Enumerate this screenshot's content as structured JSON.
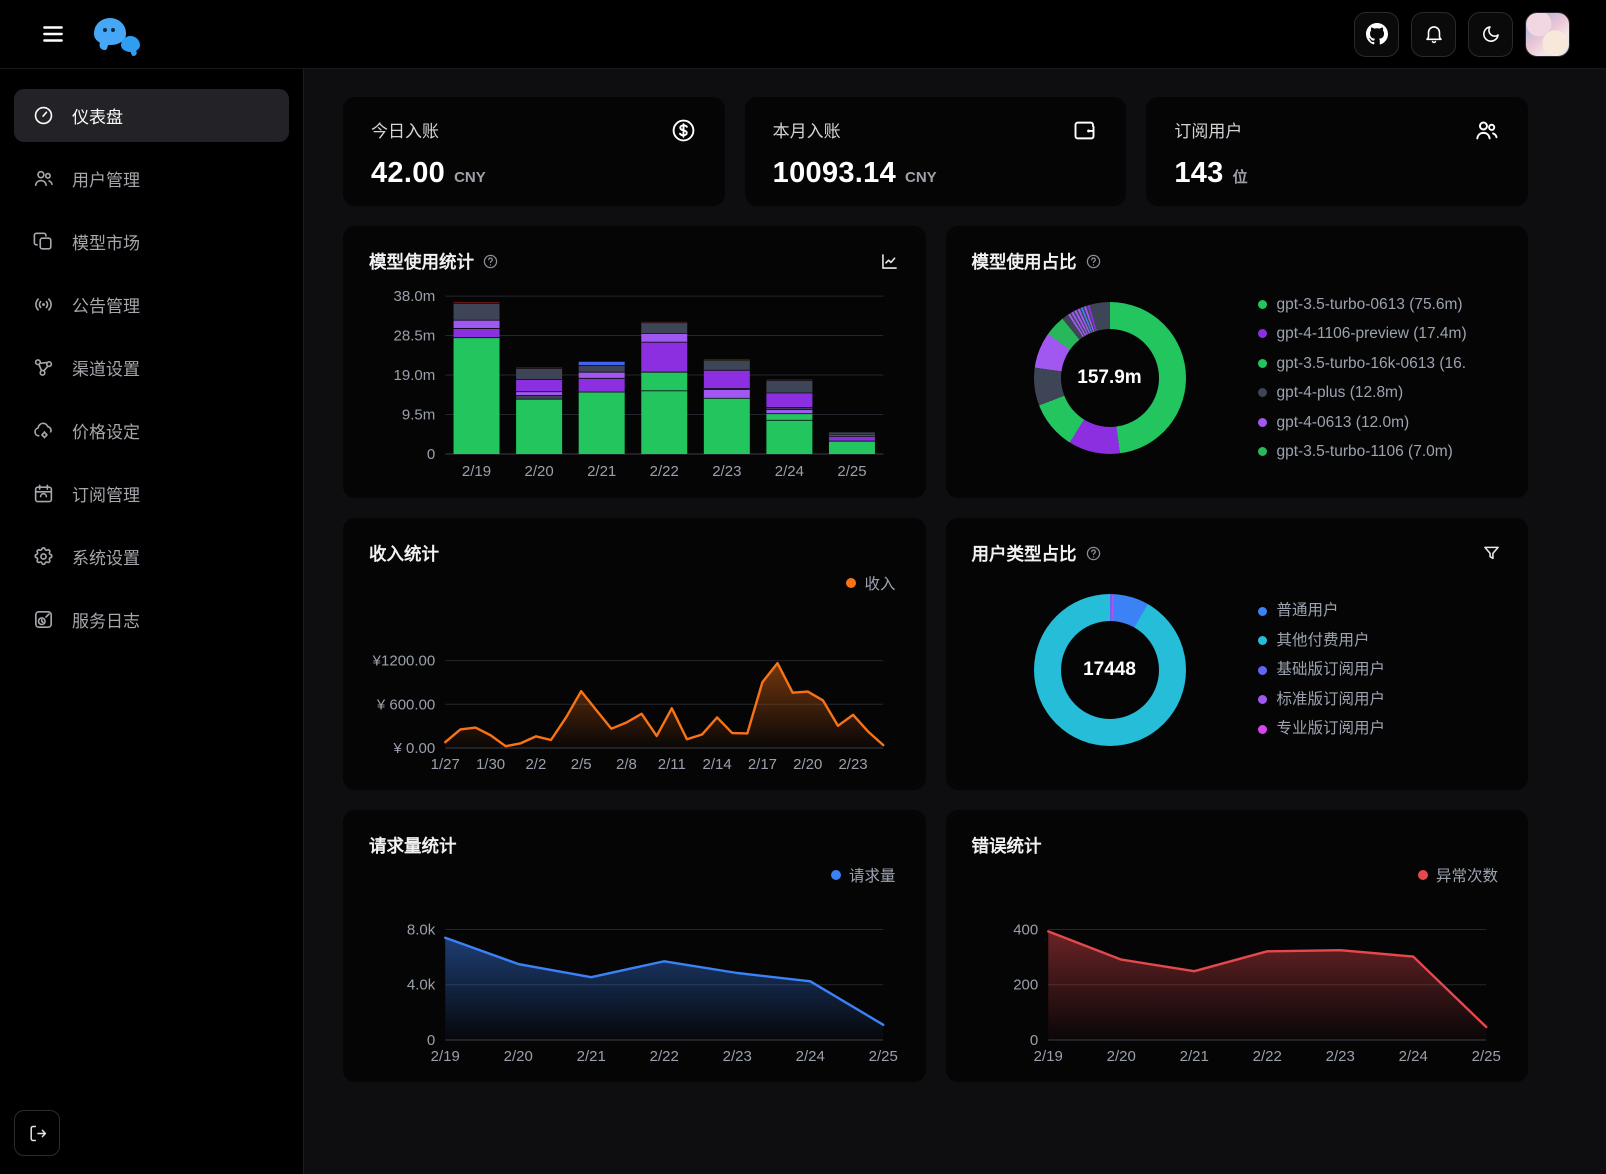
{
  "topbar": {
    "icons": [
      "menu-icon",
      "github-icon",
      "bell-icon",
      "moon-icon"
    ],
    "logo": "chat-bubbles-logo"
  },
  "sidebar": {
    "items": [
      {
        "key": "dashboard",
        "label": "仪表盘",
        "icon": "gauge-icon",
        "active": true
      },
      {
        "key": "users",
        "label": "用户管理",
        "icon": "users-icon",
        "active": false
      },
      {
        "key": "model-market",
        "label": "模型市场",
        "icon": "copy-icon",
        "active": false
      },
      {
        "key": "announcements",
        "label": "公告管理",
        "icon": "broadcast-icon",
        "active": false
      },
      {
        "key": "channels",
        "label": "渠道设置",
        "icon": "nodes-icon",
        "active": false
      },
      {
        "key": "pricing",
        "label": "价格设定",
        "icon": "cloud-gear-icon",
        "active": false
      },
      {
        "key": "subscriptions",
        "label": "订阅管理",
        "icon": "calendar-icon",
        "active": false
      },
      {
        "key": "settings",
        "label": "系统设置",
        "icon": "gear-icon",
        "active": false
      },
      {
        "key": "service-logs",
        "label": "服务日志",
        "icon": "file-clock-icon",
        "active": false
      }
    ],
    "logout_icon": "logout-icon"
  },
  "stats": [
    {
      "label": "今日入账",
      "value": "42.00",
      "unit": "CNY",
      "icon": "circle-dollar-icon"
    },
    {
      "label": "本月入账",
      "value": "10093.14",
      "unit": "CNY",
      "icon": "wallet-icon"
    },
    {
      "label": "订阅用户",
      "value": "143",
      "unit": "位",
      "icon": "people-icon"
    }
  ],
  "palette": {
    "green": "#22c55e",
    "green2": "#27b85c",
    "purple": "#8b2fe0",
    "violet": "#a158f0",
    "slate": "#3d4556",
    "blue": "#3b82f6",
    "royal": "#4263eb",
    "red": "#8f1f1f",
    "orange": "#c2560f",
    "olive": "#8a7c22",
    "cyan": "#26bdd9",
    "indigo": "#6366f1",
    "magenta": "#d946ef",
    "orangeLine": "#f97316",
    "redLine": "#e5484d"
  },
  "chart_data": [
    {
      "id": "model-usage-bars",
      "type": "bar",
      "title": "模型使用统计",
      "icons": [
        "help-icon",
        "line-chart-toggle-icon"
      ],
      "categories": [
        "2/19",
        "2/20",
        "2/21",
        "2/22",
        "2/23",
        "2/24",
        "2/25"
      ],
      "stacked": true,
      "unit": "m tokens",
      "ylim": [
        0,
        38.5
      ],
      "yticks": [
        {
          "v": 0,
          "label": "0"
        },
        {
          "v": 9.5,
          "label": "9.5m"
        },
        {
          "v": 19,
          "label": "19.0m"
        },
        {
          "v": 28.5,
          "label": "28.5m"
        },
        {
          "v": 38,
          "label": "38.0m"
        }
      ],
      "bars": [
        {
          "day": "2/19",
          "segments": [
            [
              28.0,
              "green"
            ],
            [
              2.2,
              "purple"
            ],
            [
              2.0,
              "violet"
            ],
            [
              4.0,
              "slate"
            ],
            [
              0.3,
              "red"
            ]
          ]
        },
        {
          "day": "2/20",
          "segments": [
            [
              13.2,
              "green"
            ],
            [
              0.9,
              "slate"
            ],
            [
              0.9,
              "violet"
            ],
            [
              2.9,
              "purple"
            ],
            [
              2.7,
              "slate"
            ],
            [
              0.2,
              "red"
            ]
          ]
        },
        {
          "day": "2/21",
          "segments": [
            [
              14.9,
              "green"
            ],
            [
              3.3,
              "purple"
            ],
            [
              1.5,
              "violet"
            ],
            [
              1.6,
              "slate"
            ],
            [
              0.9,
              "royal"
            ]
          ]
        },
        {
          "day": "2/22",
          "segments": [
            [
              15.2,
              "green"
            ],
            [
              4.5,
              "green"
            ],
            [
              7.2,
              "purple"
            ],
            [
              2.1,
              "violet"
            ],
            [
              2.6,
              "slate"
            ],
            [
              0.2,
              "red"
            ]
          ]
        },
        {
          "day": "2/23",
          "segments": [
            [
              13.4,
              "green"
            ],
            [
              2.1,
              "violet"
            ],
            [
              0.25,
              "orange"
            ],
            [
              4.4,
              "purple"
            ],
            [
              2.4,
              "slate"
            ],
            [
              0.15,
              "olive"
            ]
          ]
        },
        {
          "day": "2/24",
          "segments": [
            [
              8.1,
              "green"
            ],
            [
              1.6,
              "green"
            ],
            [
              1.0,
              "violet"
            ],
            [
              0.5,
              "slate"
            ],
            [
              3.5,
              "purple"
            ],
            [
              3.0,
              "slate"
            ],
            [
              0.2,
              "red"
            ]
          ]
        },
        {
          "day": "2/25",
          "segments": [
            [
              3.1,
              "green"
            ],
            [
              1.1,
              "purple"
            ],
            [
              0.4,
              "violet"
            ],
            [
              0.6,
              "slate"
            ]
          ]
        }
      ]
    },
    {
      "id": "model-share-donut",
      "type": "pie",
      "title": "模型使用占比",
      "icons": [
        "help-icon"
      ],
      "center_label": "157.9m",
      "legend": [
        {
          "label": "gpt-3.5-turbo-0613 (75.6m)",
          "color": "green"
        },
        {
          "label": "gpt-4-1106-preview (17.4m)",
          "color": "purple"
        },
        {
          "label": "gpt-3.5-turbo-16k-0613 (16.",
          "color": "green"
        },
        {
          "label": "gpt-4-plus (12.8m)",
          "color": "slate"
        },
        {
          "label": "gpt-4-0613 (12.0m)",
          "color": "violet"
        },
        {
          "label": "gpt-3.5-turbo-1106 (7.0m)",
          "color": "green2"
        }
      ],
      "slices": [
        [
          75.6,
          "green"
        ],
        [
          17.4,
          "purple"
        ],
        [
          16.1,
          "green"
        ],
        [
          12.8,
          "slate"
        ],
        [
          12.0,
          "violet"
        ],
        [
          7.0,
          "green2"
        ],
        [
          2.3,
          "slate"
        ],
        [
          0.7,
          "violet"
        ],
        [
          0.5,
          "slate"
        ],
        [
          0.7,
          "violet"
        ],
        [
          0.5,
          "slate"
        ],
        [
          0.7,
          "violet"
        ],
        [
          0.5,
          "slate"
        ],
        [
          0.7,
          "violet"
        ],
        [
          0.5,
          "slate"
        ],
        [
          0.6,
          "blue"
        ],
        [
          0.5,
          "slate"
        ],
        [
          0.7,
          "violet"
        ],
        [
          0.5,
          "slate"
        ],
        [
          0.7,
          "purple"
        ],
        [
          6.9,
          "slate"
        ]
      ]
    },
    {
      "id": "income-line",
      "type": "line",
      "title": "收入统计",
      "icons": [],
      "legend": [
        {
          "label": "收入",
          "color": "orangeLine"
        }
      ],
      "color": "orangeLine",
      "ylim": [
        0,
        1840
      ],
      "yticks": [
        {
          "v": 0,
          "label": "¥ 0.00"
        },
        {
          "v": 600,
          "label": "¥ 600.00"
        },
        {
          "v": 1200,
          "label": "¥1200.00"
        }
      ],
      "x": [
        "1/27",
        "",
        "",
        "1/30",
        "",
        "",
        "2/2",
        "",
        "",
        "2/5",
        "",
        "",
        "2/8",
        "",
        "",
        "2/11",
        "",
        "",
        "2/14",
        "",
        "",
        "2/17",
        "",
        "",
        "2/20",
        "",
        "",
        "2/23",
        "",
        ""
      ],
      "values": [
        80,
        255,
        280,
        175,
        25,
        65,
        160,
        110,
        420,
        780,
        520,
        265,
        350,
        470,
        165,
        545,
        120,
        185,
        420,
        205,
        200,
        905,
        1165,
        760,
        775,
        655,
        305,
        455,
        225,
        40
      ]
    },
    {
      "id": "user-type-donut",
      "type": "pie",
      "title": "用户类型占比",
      "icons": [
        "help-icon",
        "filter-icon"
      ],
      "center_label": "17448",
      "legend": [
        {
          "label": "普通用户",
          "color": "blue"
        },
        {
          "label": "其他付费用户",
          "color": "cyan"
        },
        {
          "label": "基础版订阅用户",
          "color": "indigo"
        },
        {
          "label": "标准版订阅用户",
          "color": "violet"
        },
        {
          "label": "专业版订阅用户",
          "color": "magenta"
        }
      ],
      "slices": [
        [
          80,
          "indigo"
        ],
        [
          40,
          "violet"
        ],
        [
          23,
          "magenta"
        ],
        [
          1305,
          "blue"
        ],
        [
          16000,
          "cyan"
        ]
      ]
    },
    {
      "id": "requests-line",
      "type": "line",
      "title": "请求量统计",
      "icons": [],
      "legend": [
        {
          "label": "请求量",
          "color": "blue"
        }
      ],
      "color": "blue",
      "ylim": [
        0,
        9700
      ],
      "yticks": [
        {
          "v": 0,
          "label": "0"
        },
        {
          "v": 4000,
          "label": "4.0k"
        },
        {
          "v": 8000,
          "label": "8.0k"
        }
      ],
      "x": [
        "2/19",
        "2/20",
        "2/21",
        "2/22",
        "2/23",
        "2/24",
        "2/25"
      ],
      "values": [
        7400,
        5500,
        4550,
        5700,
        4850,
        4250,
        1100
      ]
    },
    {
      "id": "errors-line",
      "type": "line",
      "title": "错误统计",
      "icons": [],
      "legend": [
        {
          "label": "异常次数",
          "color": "redLine"
        }
      ],
      "color": "redLine",
      "ylim": [
        0,
        485
      ],
      "yticks": [
        {
          "v": 0,
          "label": "0"
        },
        {
          "v": 200,
          "label": "200"
        },
        {
          "v": 400,
          "label": "400"
        }
      ],
      "x": [
        "2/19",
        "2/20",
        "2/21",
        "2/22",
        "2/23",
        "2/24",
        "2/25"
      ],
      "values": [
        393,
        291,
        249,
        321,
        325,
        302,
        47
      ]
    }
  ]
}
